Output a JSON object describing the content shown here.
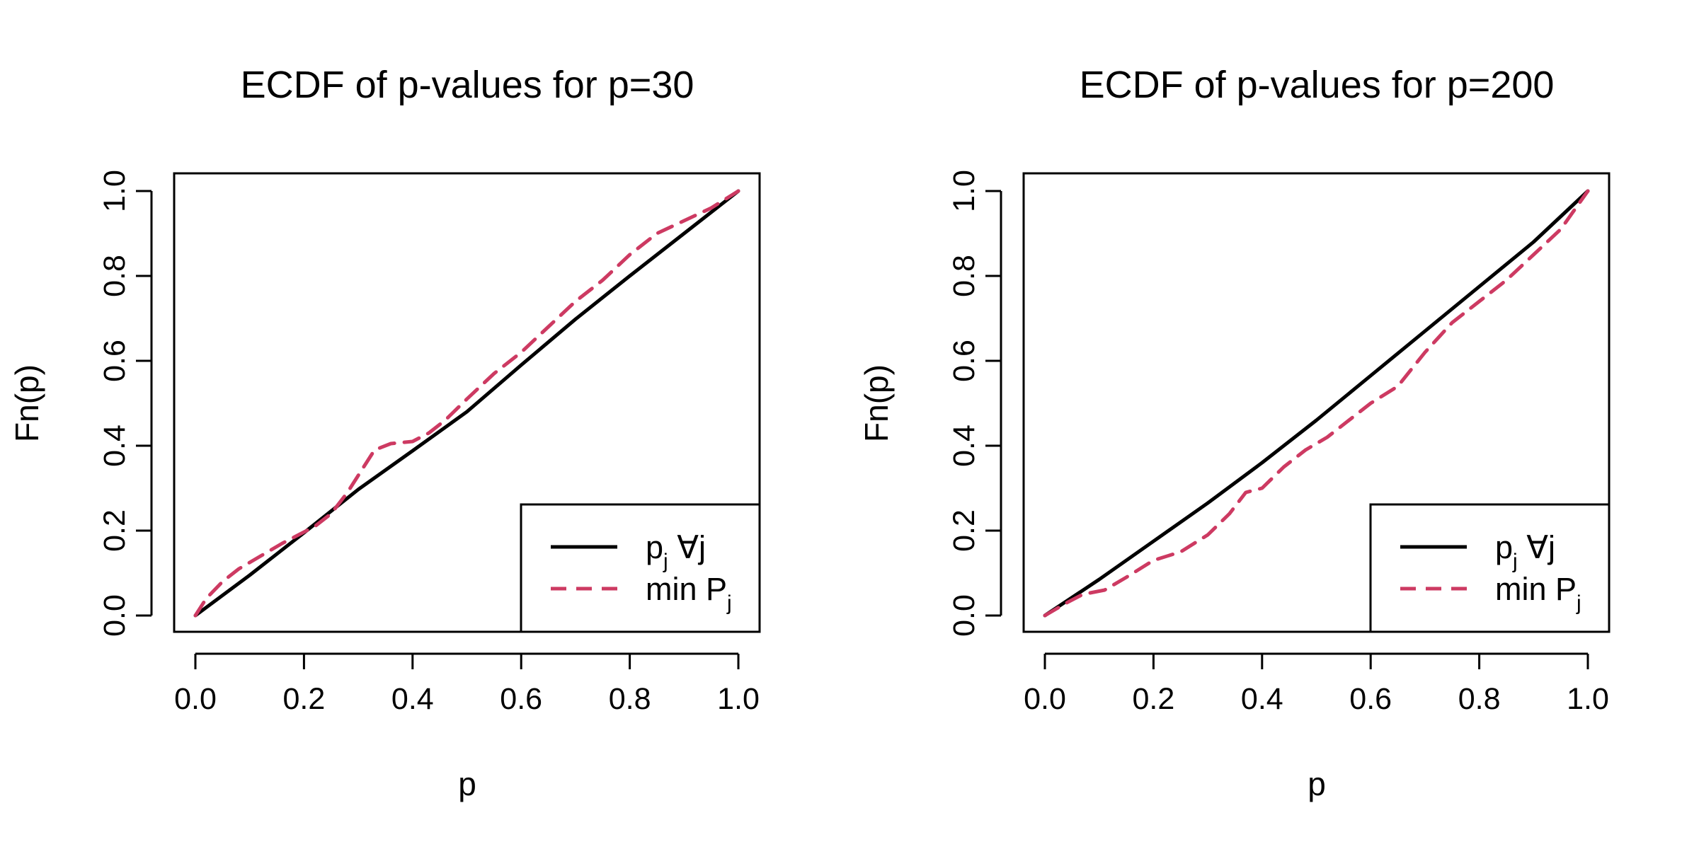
{
  "chart_data": [
    {
      "type": "line",
      "title": "ECDF of p-values for p=30",
      "xlabel": "p",
      "ylabel": "Fn(p)",
      "xlim": [
        0,
        1
      ],
      "ylim": [
        0,
        1
      ],
      "xticks": [
        0.0,
        0.2,
        0.4,
        0.6,
        0.8,
        1.0
      ],
      "xtick_labels": [
        "0.0",
        "0.2",
        "0.4",
        "0.6",
        "0.8",
        "1.0"
      ],
      "yticks": [
        0.0,
        0.2,
        0.4,
        0.6,
        0.8,
        1.0
      ],
      "ytick_labels": [
        "0.0",
        "0.2",
        "0.4",
        "0.6",
        "0.8",
        "1.0"
      ],
      "grid": false,
      "legend_position": "bottom-right",
      "series": [
        {
          "name": "p_j ∀j",
          "label_main": "p",
          "label_sub": "j",
          "label_suffix": " ∀j",
          "color": "#000000",
          "style": "solid",
          "x": [
            0.0,
            0.1,
            0.2,
            0.3,
            0.4,
            0.5,
            0.6,
            0.7,
            0.8,
            0.9,
            1.0
          ],
          "y": [
            0.0,
            0.095,
            0.195,
            0.297,
            0.388,
            0.48,
            0.59,
            0.698,
            0.8,
            0.9,
            1.0
          ]
        },
        {
          "name": "min P_j",
          "label_main": "min P",
          "label_sub": "j",
          "label_suffix": "",
          "color": "#CD3A62",
          "style": "dashed",
          "x": [
            0.0,
            0.02,
            0.05,
            0.08,
            0.12,
            0.16,
            0.19,
            0.22,
            0.25,
            0.28,
            0.3,
            0.33,
            0.36,
            0.4,
            0.43,
            0.46,
            0.5,
            0.55,
            0.6,
            0.65,
            0.7,
            0.75,
            0.8,
            0.85,
            0.9,
            0.95,
            1.0
          ],
          "y": [
            0.0,
            0.04,
            0.08,
            0.11,
            0.14,
            0.17,
            0.19,
            0.21,
            0.24,
            0.29,
            0.33,
            0.39,
            0.405,
            0.41,
            0.43,
            0.46,
            0.51,
            0.57,
            0.62,
            0.68,
            0.74,
            0.79,
            0.85,
            0.9,
            0.93,
            0.96,
            1.0
          ]
        }
      ]
    },
    {
      "type": "line",
      "title": "ECDF of p-values for p=200",
      "xlabel": "p",
      "ylabel": "Fn(p)",
      "xlim": [
        0,
        1
      ],
      "ylim": [
        0,
        1
      ],
      "xticks": [
        0.0,
        0.2,
        0.4,
        0.6,
        0.8,
        1.0
      ],
      "xtick_labels": [
        "0.0",
        "0.2",
        "0.4",
        "0.6",
        "0.8",
        "1.0"
      ],
      "yticks": [
        0.0,
        0.2,
        0.4,
        0.6,
        0.8,
        1.0
      ],
      "ytick_labels": [
        "0.0",
        "0.2",
        "0.4",
        "0.6",
        "0.8",
        "1.0"
      ],
      "grid": false,
      "legend_position": "bottom-right",
      "series": [
        {
          "name": "p_j ∀j",
          "label_main": "p",
          "label_sub": "j",
          "label_suffix": " ∀j",
          "color": "#000000",
          "style": "solid",
          "x": [
            0.0,
            0.1,
            0.2,
            0.3,
            0.4,
            0.5,
            0.6,
            0.7,
            0.8,
            0.9,
            1.0
          ],
          "y": [
            0.0,
            0.085,
            0.175,
            0.265,
            0.36,
            0.46,
            0.565,
            0.67,
            0.775,
            0.88,
            1.0
          ]
        },
        {
          "name": "min P_j",
          "label_main": "min P",
          "label_sub": "j",
          "label_suffix": "",
          "color": "#CD3A62",
          "style": "dashed",
          "x": [
            0.0,
            0.04,
            0.07,
            0.11,
            0.15,
            0.2,
            0.25,
            0.3,
            0.34,
            0.37,
            0.4,
            0.44,
            0.48,
            0.52,
            0.56,
            0.6,
            0.65,
            0.7,
            0.75,
            0.8,
            0.85,
            0.9,
            0.95,
            1.0
          ],
          "y": [
            0.0,
            0.03,
            0.05,
            0.06,
            0.09,
            0.13,
            0.15,
            0.19,
            0.24,
            0.29,
            0.3,
            0.35,
            0.39,
            0.42,
            0.46,
            0.5,
            0.54,
            0.62,
            0.69,
            0.74,
            0.79,
            0.85,
            0.91,
            1.0
          ]
        }
      ]
    }
  ]
}
